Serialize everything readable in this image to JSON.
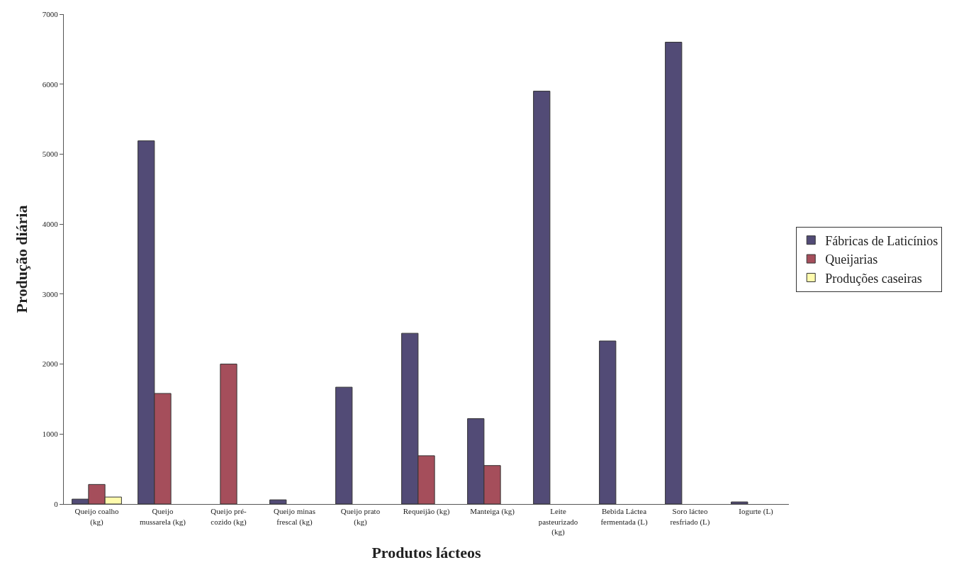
{
  "chart_data": {
    "type": "bar",
    "xlabel": "Produtos lácteos",
    "ylabel": "Produção diária",
    "categories": [
      "Queijo coalho\n(kg)",
      "Queijo\nmussarela (kg)",
      "Queijo pré-\ncozido (kg)",
      "Queijo minas\nfrescal (kg)",
      "Queijo prato\n(kg)",
      "Requeijão (kg)",
      "Manteiga (kg)",
      "Leite\npasteurizado\n(kg)",
      "Bebida Láctea\nfermentada (L)",
      "Soro lácteo\nresfriado (L)",
      "Iogurte (L)"
    ],
    "series": [
      {
        "name": "Fábricas de Laticínios",
        "color": "#524b76",
        "values": [
          70,
          5190,
          0,
          60,
          1670,
          2440,
          1220,
          5900,
          2330,
          6600,
          30
        ]
      },
      {
        "name": "Queijarias",
        "color": "#a54e5b",
        "values": [
          280,
          1580,
          2000,
          0,
          0,
          690,
          550,
          0,
          0,
          0,
          0
        ]
      },
      {
        "name": "Produções caseiras",
        "color": "#fffbad",
        "values": [
          100,
          0,
          0,
          0,
          0,
          0,
          0,
          0,
          0,
          0,
          0
        ]
      }
    ],
    "ylim": [
      0,
      7000
    ],
    "yticks": [
      0,
      1000,
      2000,
      3000,
      4000,
      5000,
      6000,
      7000
    ],
    "legend": "right"
  }
}
